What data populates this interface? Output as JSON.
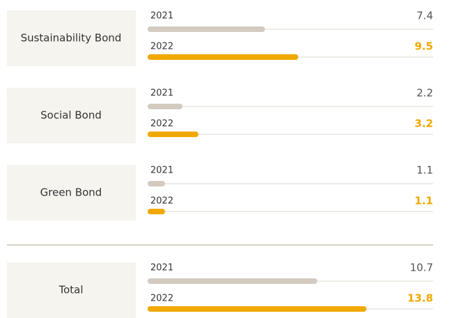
{
  "chart_data": {
    "type": "bar",
    "orientation": "horizontal",
    "categories": [
      "Sustainability Bond",
      "Social Bond",
      "Green Bond",
      "Total"
    ],
    "series": [
      {
        "name": "2021",
        "color": "#d3cbc0",
        "values": [
          7.4,
          2.2,
          1.1,
          10.7
        ]
      },
      {
        "name": "2022",
        "color": "#f0a800",
        "values": [
          9.5,
          3.2,
          1.1,
          13.8
        ]
      }
    ],
    "xlim": [
      0,
      18
    ]
  }
}
